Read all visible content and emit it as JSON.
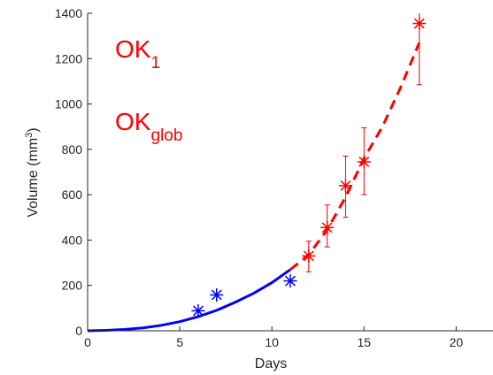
{
  "chart_data": {
    "type": "scatter",
    "title": "",
    "xlabel": "Days",
    "ylabel_base": "Volume (mm",
    "ylabel_sup": "3",
    "ylabel_end": ")",
    "xlim": [
      0,
      22
    ],
    "ylim": [
      0,
      1400
    ],
    "xticks": [
      0,
      5,
      10,
      15,
      20
    ],
    "yticks": [
      0,
      200,
      400,
      600,
      800,
      1000,
      1200,
      1400
    ],
    "grid": false,
    "legend": "none",
    "annotations": [
      {
        "base": "OK",
        "sub": "1",
        "color": "#ff0000"
      },
      {
        "base": "OK",
        "sub": "glob",
        "color": "#ff0000"
      }
    ],
    "series": [
      {
        "style": "markers",
        "marker": "asterisk",
        "color": "#0000ff",
        "points": [
          {
            "x": 6,
            "y": 88
          },
          {
            "x": 7,
            "y": 158
          },
          {
            "x": 11,
            "y": 220
          }
        ]
      },
      {
        "style": "markers-with-errorbars",
        "marker": "asterisk",
        "color": "#ff0000",
        "points": [
          {
            "x": 12,
            "y": 330,
            "lower": 260,
            "upper": 395
          },
          {
            "x": 13,
            "y": 455,
            "lower": 370,
            "upper": 555
          },
          {
            "x": 14,
            "y": 640,
            "lower": 500,
            "upper": 770
          },
          {
            "x": 15,
            "y": 745,
            "lower": 600,
            "upper": 895
          },
          {
            "x": 18,
            "y": 1355,
            "lower": 1085,
            "upper": 1420
          }
        ]
      },
      {
        "style": "solid-line",
        "color": "#0000ff",
        "points": [
          {
            "x": 0,
            "y": 0
          },
          {
            "x": 1,
            "y": 2
          },
          {
            "x": 2,
            "y": 6
          },
          {
            "x": 3,
            "y": 13
          },
          {
            "x": 4,
            "y": 24
          },
          {
            "x": 5,
            "y": 40
          },
          {
            "x": 6,
            "y": 62
          },
          {
            "x": 7,
            "y": 90
          },
          {
            "x": 8,
            "y": 125
          },
          {
            "x": 9,
            "y": 165
          },
          {
            "x": 10,
            "y": 212
          },
          {
            "x": 11,
            "y": 270
          }
        ]
      },
      {
        "style": "dashed-line",
        "color": "#ff0000",
        "points": [
          {
            "x": 11,
            "y": 270
          },
          {
            "x": 12,
            "y": 335
          },
          {
            "x": 13,
            "y": 445
          },
          {
            "x": 14,
            "y": 590
          },
          {
            "x": 15,
            "y": 760
          },
          {
            "x": 16,
            "y": 900
          },
          {
            "x": 17,
            "y": 1075
          },
          {
            "x": 18,
            "y": 1270
          }
        ]
      }
    ]
  }
}
